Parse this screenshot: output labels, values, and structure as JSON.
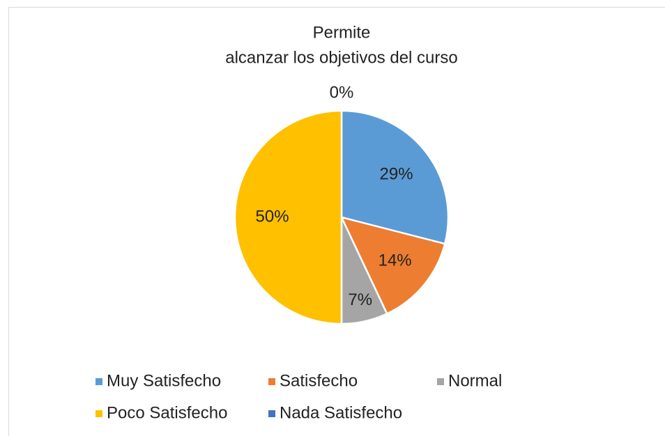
{
  "chart_data": {
    "type": "pie",
    "title": [
      "Permite",
      "alcanzar los objetivos del curso"
    ],
    "categories": [
      "Muy Satisfecho",
      "Satisfecho",
      "Normal",
      "Poco Satisfecho",
      "Nada Satisfecho"
    ],
    "values": [
      29,
      14,
      7,
      50,
      0
    ],
    "value_labels": [
      "29%",
      "14%",
      "7%",
      "50%",
      "0%"
    ],
    "colors": [
      "#5b9bd5",
      "#ed7d31",
      "#a5a5a5",
      "#ffc000",
      "#4472c4"
    ],
    "legend": "bottom"
  }
}
